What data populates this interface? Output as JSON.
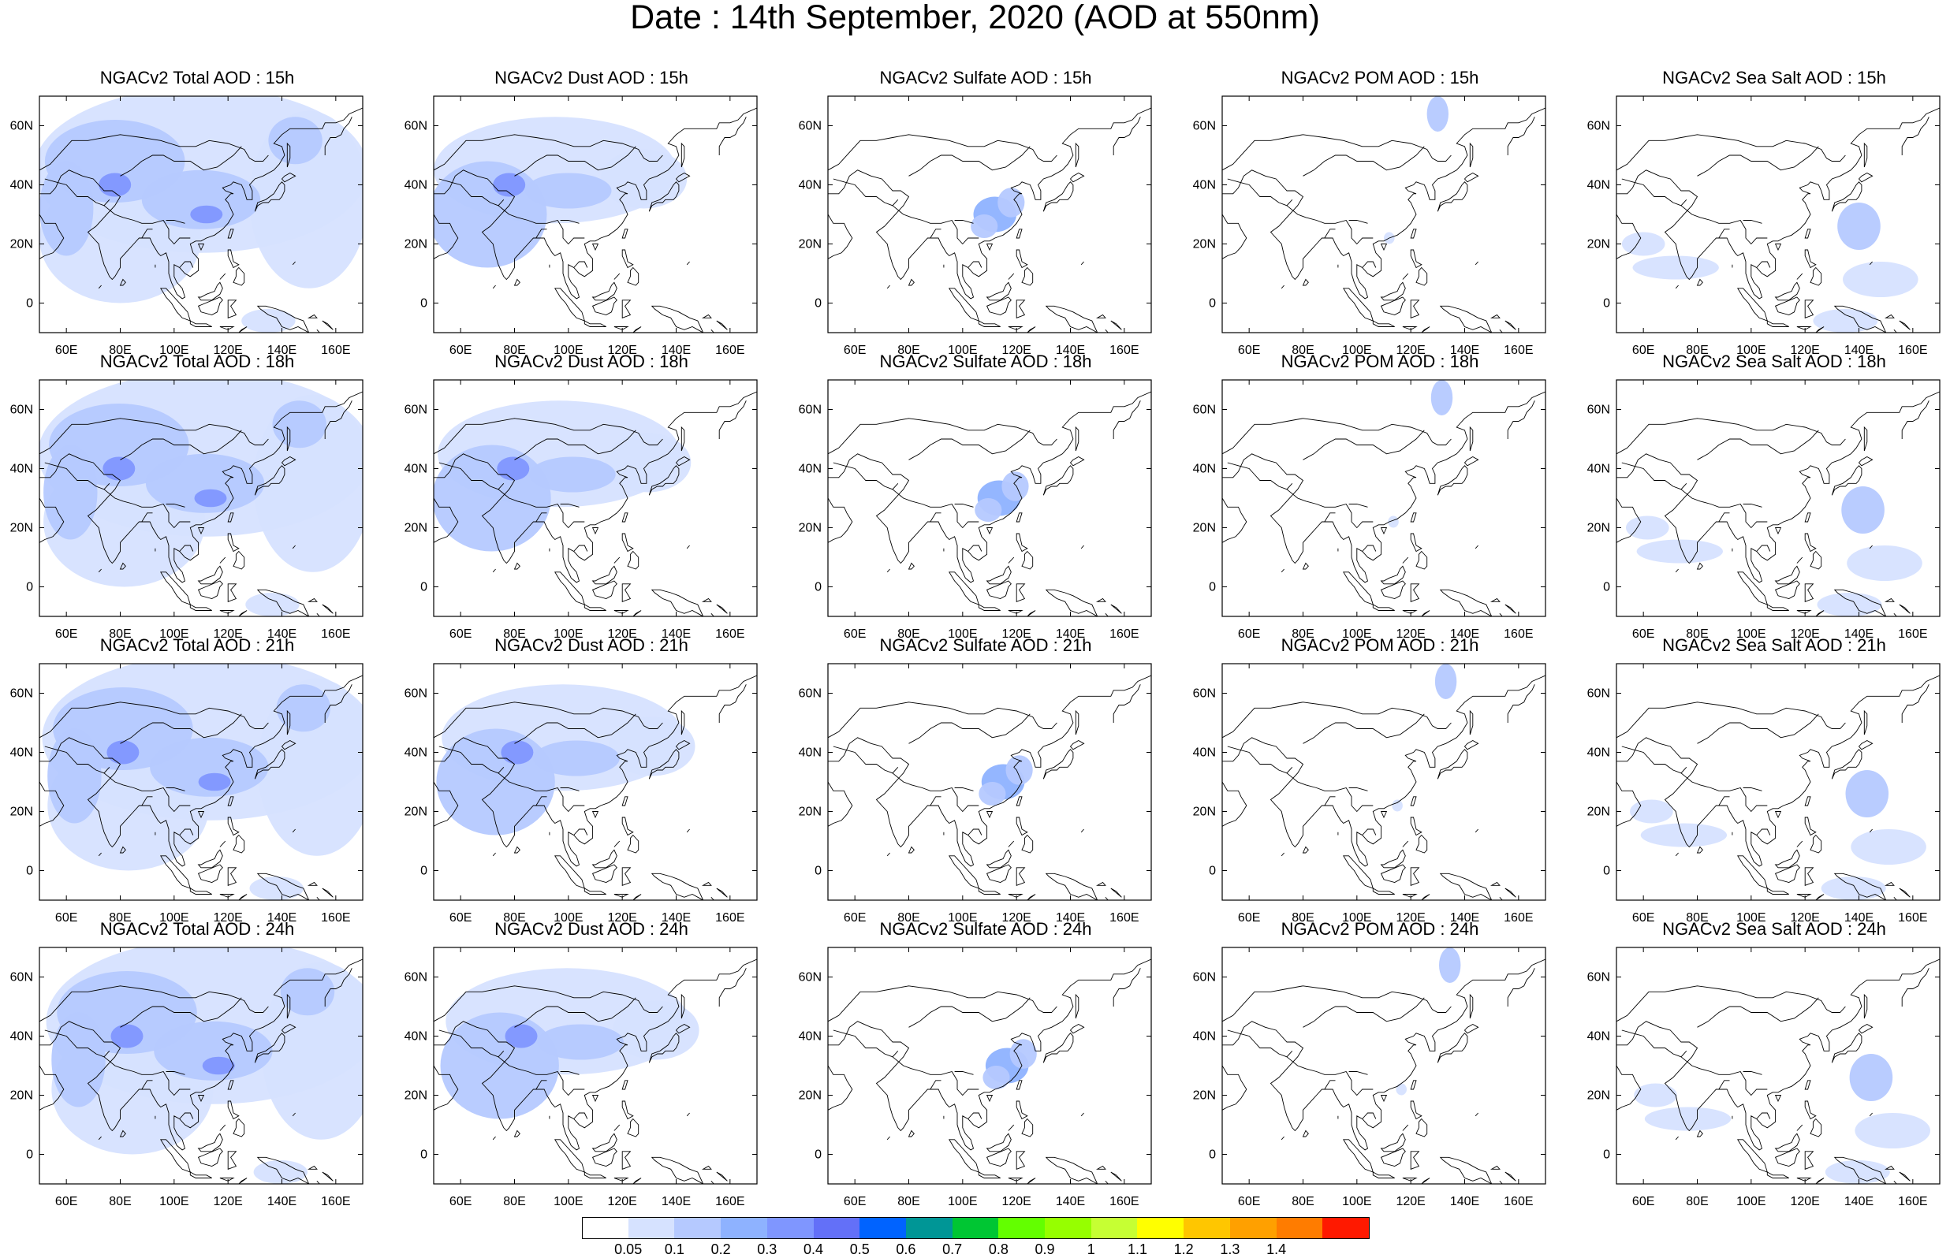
{
  "title": "Date : 14th September, 2020 (AOD at 550nm)",
  "panels": [
    {
      "title": "NGACv2 Total AOD : 15h",
      "species": "total",
      "hour": 15
    },
    {
      "title": "NGACv2 Dust AOD : 15h",
      "species": "dust",
      "hour": 15
    },
    {
      "title": "NGACv2 Sulfate AOD : 15h",
      "species": "sulfate",
      "hour": 15
    },
    {
      "title": "NGACv2 POM AOD : 15h",
      "species": "pom",
      "hour": 15
    },
    {
      "title": "NGACv2 Sea Salt AOD : 15h",
      "species": "seasalt",
      "hour": 15
    },
    {
      "title": "NGACv2 Total AOD : 18h",
      "species": "total",
      "hour": 18
    },
    {
      "title": "NGACv2 Dust AOD : 18h",
      "species": "dust",
      "hour": 18
    },
    {
      "title": "NGACv2 Sulfate AOD : 18h",
      "species": "sulfate",
      "hour": 18
    },
    {
      "title": "NGACv2 POM AOD : 18h",
      "species": "pom",
      "hour": 18
    },
    {
      "title": "NGACv2 Sea Salt AOD : 18h",
      "species": "seasalt",
      "hour": 18
    },
    {
      "title": "NGACv2 Total AOD : 21h",
      "species": "total",
      "hour": 21
    },
    {
      "title": "NGACv2 Dust AOD : 21h",
      "species": "dust",
      "hour": 21
    },
    {
      "title": "NGACv2 Sulfate AOD : 21h",
      "species": "sulfate",
      "hour": 21
    },
    {
      "title": "NGACv2 POM AOD : 21h",
      "species": "pom",
      "hour": 21
    },
    {
      "title": "NGACv2 Sea Salt AOD : 21h",
      "species": "seasalt",
      "hour": 21
    },
    {
      "title": "NGACv2 Total AOD : 24h",
      "species": "total",
      "hour": 24
    },
    {
      "title": "NGACv2 Dust AOD : 24h",
      "species": "dust",
      "hour": 24
    },
    {
      "title": "NGACv2 Sulfate AOD : 24h",
      "species": "sulfate",
      "hour": 24
    },
    {
      "title": "NGACv2 POM AOD : 24h",
      "species": "pom",
      "hour": 24
    },
    {
      "title": "NGACv2 Sea Salt  AOD : 24h",
      "species": "seasalt",
      "hour": 24
    }
  ],
  "map": {
    "lon_range": [
      50,
      170
    ],
    "lat_range": [
      -10,
      70
    ],
    "lon_ticks": [
      "60E",
      "80E",
      "100E",
      "120E",
      "140E",
      "160E"
    ],
    "lat_ticks": [
      "60N",
      "40N",
      "20N",
      "0"
    ],
    "lon_tick_values": [
      60,
      80,
      100,
      120,
      140,
      160
    ],
    "lat_tick_values": [
      60,
      40,
      20,
      0
    ]
  },
  "colorbar": {
    "levels": [
      "0.05",
      "0.1",
      "0.2",
      "0.3",
      "0.4",
      "0.5",
      "0.6",
      "0.7",
      "0.8",
      "0.9",
      "1",
      "1.1",
      "1.2",
      "1.3",
      "1.4"
    ],
    "colors": [
      "#ffffff",
      "#d6e2ff",
      "#b5c9ff",
      "#8eb2ff",
      "#7f96ff",
      "#6370f8",
      "#0063ff",
      "#009696",
      "#00c633",
      "#63ff00",
      "#96ff00",
      "#c6ff33",
      "#ffff00",
      "#ffc600",
      "#ffa000",
      "#ff7c00",
      "#ff1900"
    ]
  }
}
